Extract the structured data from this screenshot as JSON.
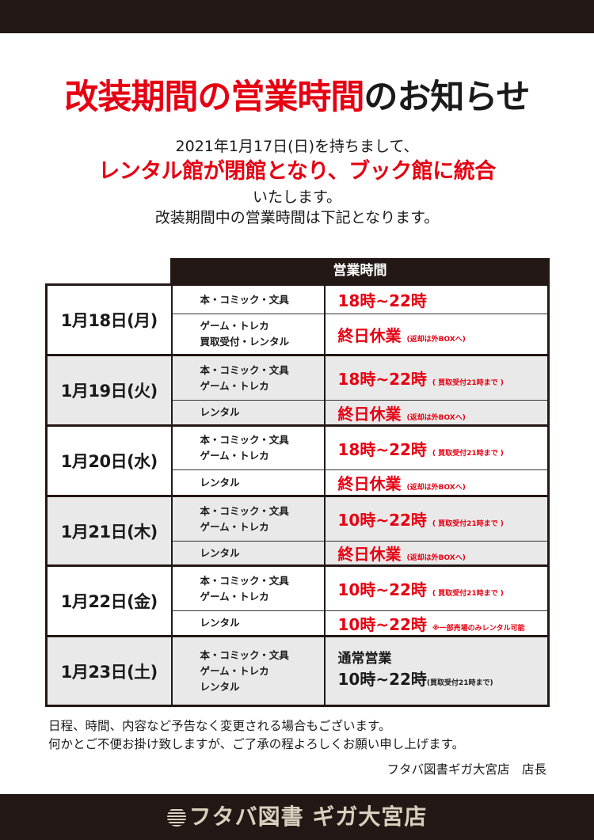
{
  "title": {
    "red": "改装期間の営業時間",
    "black": "のお知らせ"
  },
  "intro": {
    "line1": "2021年1月17日(日)を持ちまして、",
    "line2": "レンタル館が閉館となり、ブック館に統合",
    "line3": "いたします。",
    "line4": "改装期間中の営業時間は下記となります。"
  },
  "table": {
    "header": "営業時間",
    "days": [
      {
        "date": "1月18日(月)",
        "rows": [
          {
            "cat": [
              "本・コミック・文具"
            ],
            "hours": "18時~22時",
            "note": ""
          },
          {
            "cat": [
              "ゲーム・トレカ",
              "買取受付・レンタル"
            ],
            "hours": "終日休業",
            "note": "(返却は外BOXへ)"
          }
        ]
      },
      {
        "date": "1月19日(火)",
        "rows": [
          {
            "cat": [
              "本・コミック・文具",
              "ゲーム・トレカ"
            ],
            "hours": "18時~22時",
            "note": "( 買取受付21時まで )"
          },
          {
            "cat": [
              "レンタル"
            ],
            "hours": "終日休業",
            "note": "(返却は外BOXへ)"
          }
        ]
      },
      {
        "date": "1月20日(水)",
        "rows": [
          {
            "cat": [
              "本・コミック・文具",
              "ゲーム・トレカ"
            ],
            "hours": "18時~22時",
            "note": "( 買取受付21時まで )"
          },
          {
            "cat": [
              "レンタル"
            ],
            "hours": "終日休業",
            "note": "(返却は外BOXへ)"
          }
        ]
      },
      {
        "date": "1月21日(木)",
        "rows": [
          {
            "cat": [
              "本・コミック・文具",
              "ゲーム・トレカ"
            ],
            "hours": "10時~22時",
            "note": "( 買取受付21時まで )"
          },
          {
            "cat": [
              "レンタル"
            ],
            "hours": "終日休業",
            "note": "(返却は外BOXへ)"
          }
        ]
      },
      {
        "date": "1月22日(金)",
        "rows": [
          {
            "cat": [
              "本・コミック・文具",
              "ゲーム・トレカ"
            ],
            "hours": "10時~22時",
            "note": "( 買取受付21時まで )"
          },
          {
            "cat": [
              "レンタル"
            ],
            "hours": "10時~22時",
            "note": "※一部売場のみレンタル可能"
          }
        ]
      },
      {
        "date": "1月23日(土)",
        "rows": [
          {
            "cat": [
              "本・コミック・文具",
              "ゲーム・トレカ",
              "レンタル"
            ],
            "status": "通常営業",
            "hours": "10時~22時",
            "note": "(買取受付21時まで)"
          }
        ]
      }
    ]
  },
  "notes": [
    "日程、時間、内容など予告なく変更される場合もございます。",
    "何かとご不便お掛け致しますが、ご了承の程よろしくお願い申し上げます。"
  ],
  "signature": "フタバ図書ギガ大宮店　店長",
  "footer": "フタバ図書 ギガ大宮店",
  "colors": {
    "accent": "#e60012",
    "dark": "#231815"
  }
}
